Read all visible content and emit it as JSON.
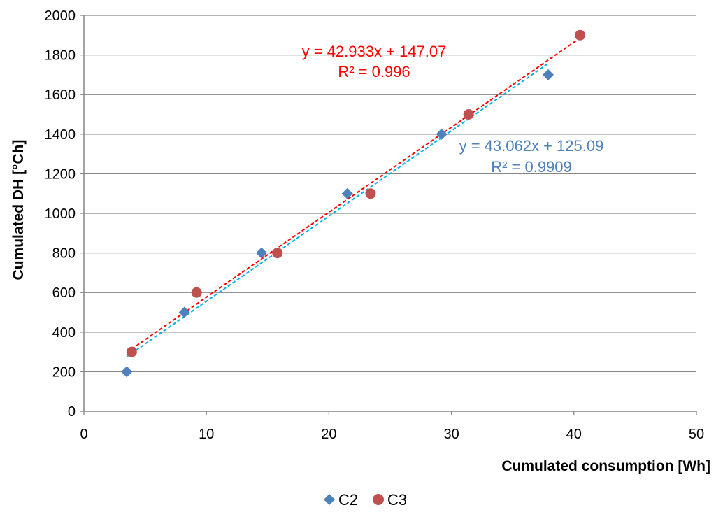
{
  "chart_data": {
    "type": "scatter",
    "title": "",
    "xlabel": "Cumulated consumption [Wh]",
    "ylabel": "Cumulated DH [°Ch]",
    "xlim": [
      0,
      50
    ],
    "ylim": [
      0,
      2000
    ],
    "x_ticks": [
      "0",
      "10",
      "20",
      "30",
      "40",
      "50"
    ],
    "y_ticks": [
      "0",
      "200",
      "400",
      "600",
      "800",
      "1000",
      "1200",
      "1400",
      "1600",
      "1800",
      "2000"
    ],
    "grid": "horizontal",
    "legend_position": "bottom",
    "series": [
      {
        "name": "C2",
        "marker": "diamond",
        "color": "#4f81bd",
        "x": [
          3.5,
          8.2,
          14.5,
          21.5,
          29.2,
          37.9
        ],
        "y": [
          200,
          500,
          800,
          1100,
          1400,
          1700
        ],
        "trendline": {
          "slope": 43.062,
          "intercept": 125.09,
          "x_range": [
            3.5,
            37.9
          ],
          "color": "#00b0f0",
          "equation": "y = 43.062x + 125.09",
          "r2": "R² = 0.9909",
          "label_color": "#4f81bd"
        }
      },
      {
        "name": "C3",
        "marker": "circle",
        "color": "#c0504d",
        "x": [
          3.9,
          9.2,
          15.8,
          23.4,
          31.4,
          40.5
        ],
        "y": [
          300,
          600,
          800,
          1100,
          1500,
          1900
        ],
        "trendline": {
          "slope": 42.933,
          "intercept": 147.07,
          "x_range": [
            3.9,
            40.5
          ],
          "color": "#ff0000",
          "equation": "y = 42.933x + 147.07",
          "r2": "R² = 0.996",
          "label_color": "#ff0000"
        }
      }
    ]
  }
}
